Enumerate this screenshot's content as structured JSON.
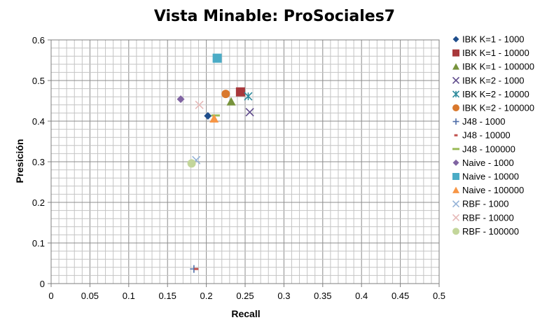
{
  "chart_data": {
    "type": "scatter",
    "title": "Vista Minable: ProSociales7",
    "xlabel": "Recall",
    "ylabel": "Presición",
    "xlim": [
      0,
      0.5
    ],
    "ylim": [
      0,
      0.6
    ],
    "x_ticks": [
      "0",
      "0.05",
      "0.1",
      "0.15",
      "0.2",
      "0.25",
      "0.3",
      "0.35",
      "0.4",
      "0.45",
      "0.5"
    ],
    "y_ticks": [
      "0",
      "0.1",
      "0.2",
      "0.3",
      "0.4",
      "0.5",
      "0.6"
    ],
    "grid": true,
    "legend_position": "right",
    "series": [
      {
        "name": "IBK K=1 - 1000",
        "marker": "diamond",
        "color": "#1f4e8c",
        "x": 0.202,
        "y": 0.413
      },
      {
        "name": "IBK K=1 - 10000",
        "marker": "square",
        "color": "#a8383b",
        "x": 0.244,
        "y": 0.472
      },
      {
        "name": "IBK K=1 - 100000",
        "marker": "triangle",
        "color": "#77933c",
        "x": 0.232,
        "y": 0.448
      },
      {
        "name": "IBK K=2 - 1000",
        "marker": "x",
        "color": "#5f4b8b",
        "x": 0.256,
        "y": 0.422
      },
      {
        "name": "IBK K=2 - 10000",
        "marker": "star",
        "color": "#2c8a9c",
        "x": 0.254,
        "y": 0.461
      },
      {
        "name": "IBK K=2 - 100000",
        "marker": "circle",
        "color": "#d9782d",
        "x": 0.225,
        "y": 0.467
      },
      {
        "name": "J48 - 1000",
        "marker": "plus",
        "color": "#4f6ea8",
        "x": 0.184,
        "y": 0.036
      },
      {
        "name": "J48 - 10000",
        "marker": "dash",
        "color": "#c0504d",
        "x": 0.187,
        "y": 0.036
      },
      {
        "name": "J48 - 100000",
        "marker": "longdash",
        "color": "#9bbb59",
        "x": 0.212,
        "y": 0.414
      },
      {
        "name": "Naive - 1000",
        "marker": "diamond",
        "color": "#8064a2",
        "x": 0.167,
        "y": 0.454
      },
      {
        "name": "Naive - 10000",
        "marker": "square",
        "color": "#4bacc6",
        "x": 0.214,
        "y": 0.555
      },
      {
        "name": "Naive - 100000",
        "marker": "triangle",
        "color": "#f79646",
        "x": 0.21,
        "y": 0.406
      },
      {
        "name": "RBF - 1000",
        "marker": "x",
        "color": "#95b3d7",
        "x": 0.187,
        "y": 0.304
      },
      {
        "name": "RBF - 10000",
        "marker": "x",
        "color": "#e6b9b8",
        "x": 0.191,
        "y": 0.44
      },
      {
        "name": "RBF - 100000",
        "marker": "circle",
        "color": "#c3d69b",
        "x": 0.181,
        "y": 0.296
      }
    ]
  }
}
